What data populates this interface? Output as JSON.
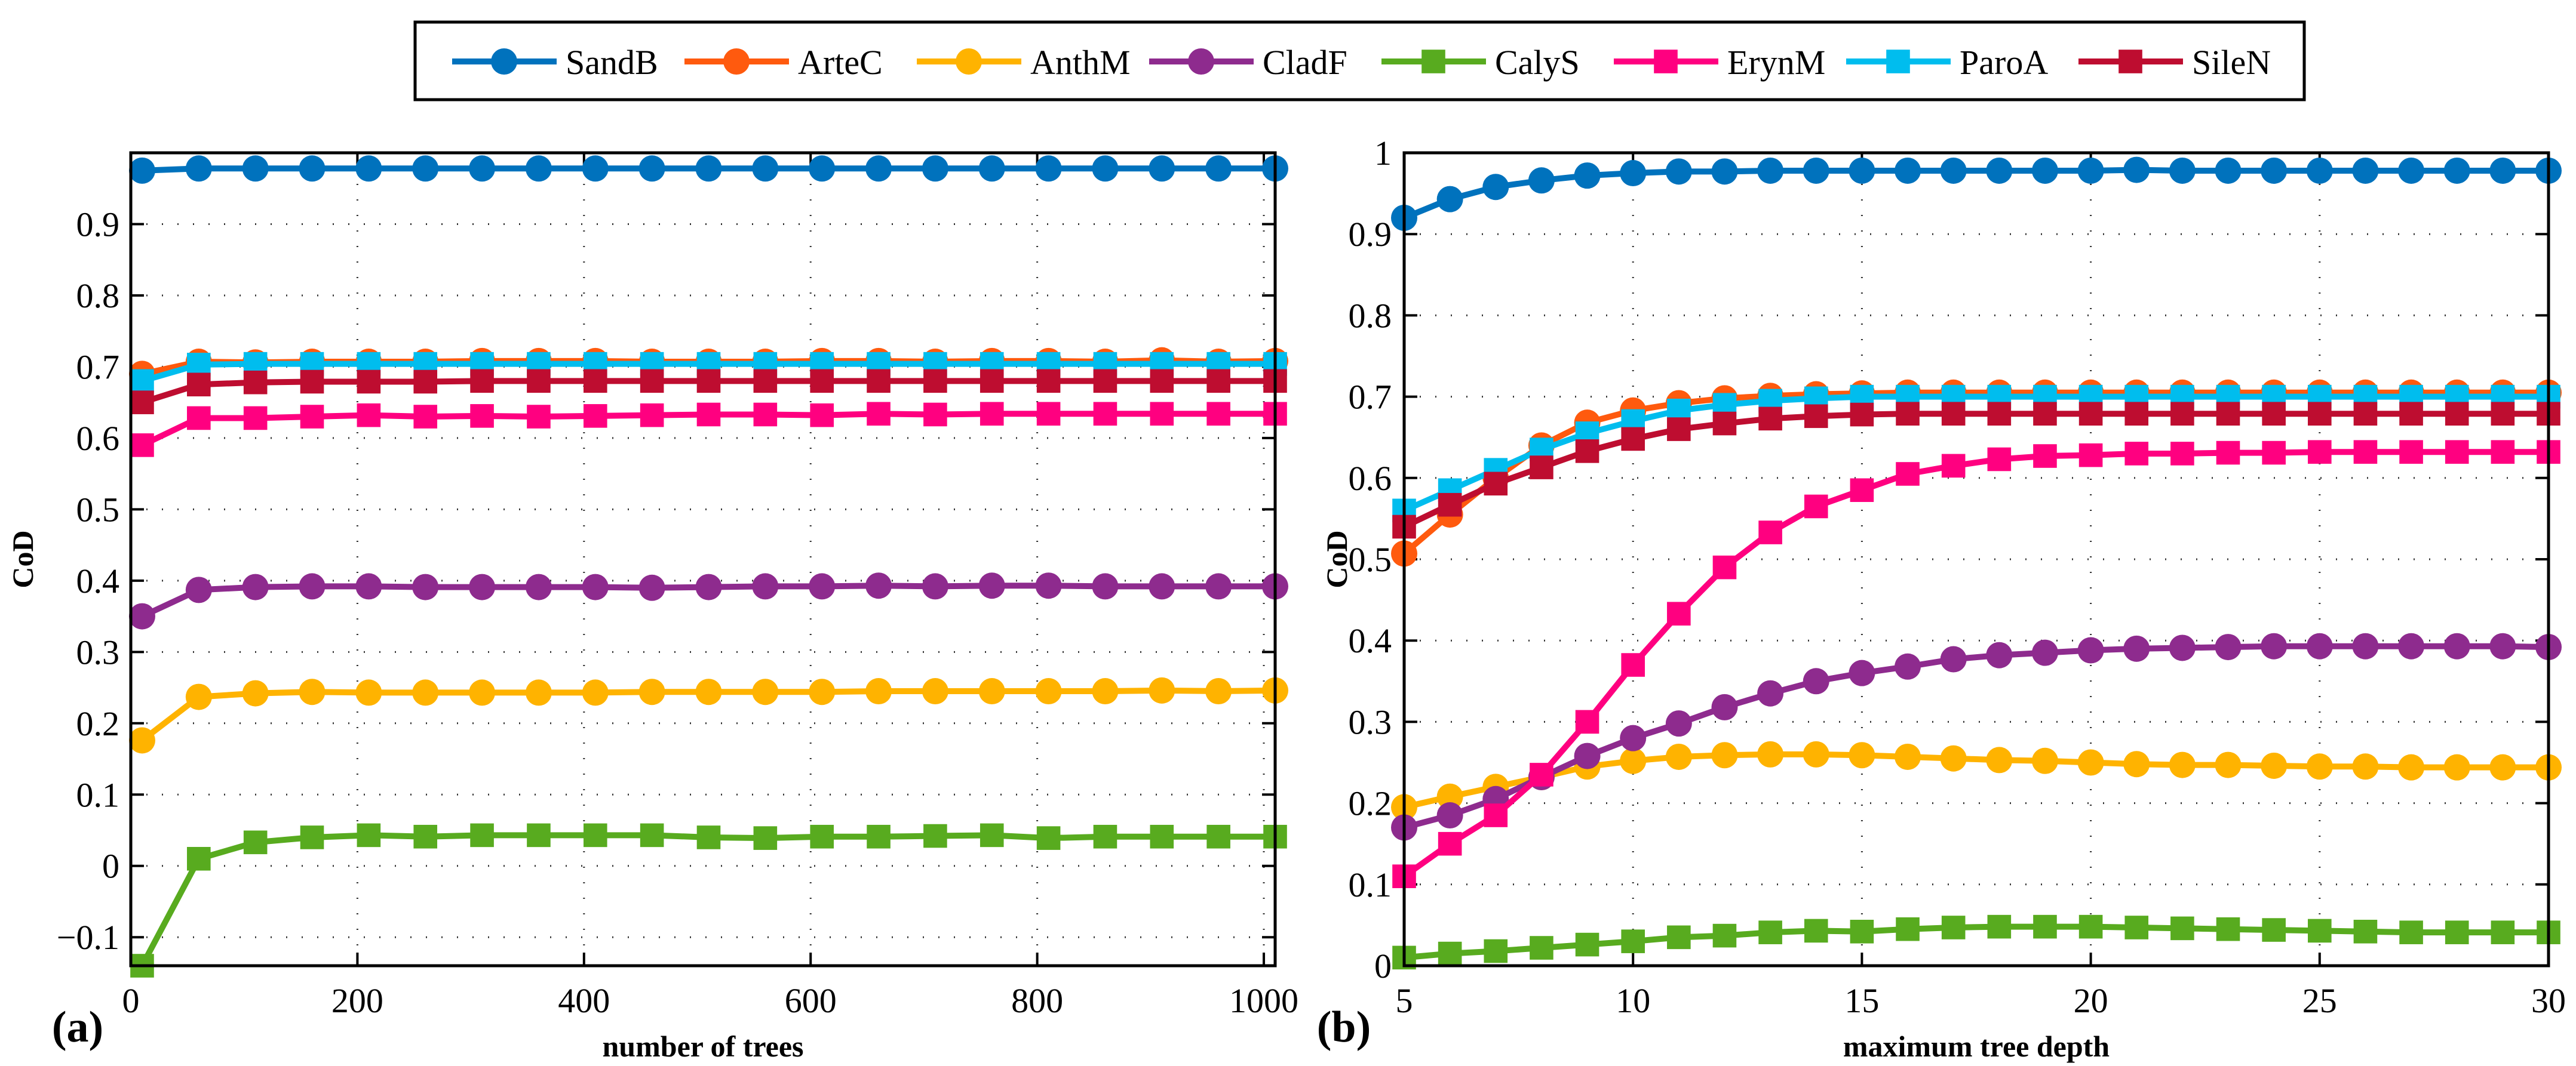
{
  "legend": {
    "placement": "top-center",
    "entries": [
      "SandB",
      "ArteC",
      "AnthM",
      "CladF",
      "CalyS",
      "ErynM",
      "ParoA",
      "SileN"
    ]
  },
  "series_style": [
    {
      "name": "SandB",
      "color": "#0072BD",
      "marker": "circle"
    },
    {
      "name": "ArteC",
      "color": "#FF5A0E",
      "marker": "circle"
    },
    {
      "name": "AnthM",
      "color": "#FFB300",
      "marker": "circle"
    },
    {
      "name": "CladF",
      "color": "#8E2B8E",
      "marker": "circle"
    },
    {
      "name": "CalyS",
      "color": "#58AB1F",
      "marker": "square"
    },
    {
      "name": "ErynM",
      "color": "#FF0080",
      "marker": "square"
    },
    {
      "name": "ParoA",
      "color": "#00BDEE",
      "marker": "square"
    },
    {
      "name": "SileN",
      "color": "#BE0D30",
      "marker": "square"
    }
  ],
  "chart_data": [
    {
      "type": "line",
      "panel_label": "(a)",
      "xlabel": "number of trees",
      "ylabel": "CoD",
      "xlim": [
        0,
        1010
      ],
      "ylim": [
        -0.14,
        1.0
      ],
      "xticks": [
        0,
        200,
        400,
        600,
        800,
        1000
      ],
      "xtick_labels": [
        "0",
        "200",
        "400",
        "600",
        "800",
        "1000"
      ],
      "yticks": [
        -0.1,
        0,
        0.1,
        0.2,
        0.3,
        0.4,
        0.5,
        0.6,
        0.7,
        0.8,
        0.9
      ],
      "ytick_labels": [
        "−0.1",
        "0",
        "0.1",
        "0.2",
        "0.3",
        "0.4",
        "0.5",
        "0.6",
        "0.7",
        "0.8",
        "0.9"
      ],
      "grid": true,
      "x": [
        10,
        60,
        110,
        160,
        210,
        260,
        310,
        360,
        410,
        460,
        510,
        560,
        610,
        660,
        710,
        760,
        810,
        860,
        910,
        960,
        1010
      ],
      "series": [
        {
          "name": "SandB",
          "values": [
            0.975,
            0.978,
            0.978,
            0.978,
            0.978,
            0.978,
            0.978,
            0.978,
            0.978,
            0.978,
            0.978,
            0.978,
            0.978,
            0.978,
            0.978,
            0.978,
            0.978,
            0.978,
            0.978,
            0.978,
            0.978
          ]
        },
        {
          "name": "ArteC",
          "values": [
            0.69,
            0.707,
            0.706,
            0.707,
            0.707,
            0.707,
            0.708,
            0.708,
            0.708,
            0.707,
            0.707,
            0.707,
            0.708,
            0.708,
            0.707,
            0.708,
            0.708,
            0.707,
            0.709,
            0.707,
            0.708
          ]
        },
        {
          "name": "AnthM",
          "values": [
            0.176,
            0.237,
            0.242,
            0.244,
            0.243,
            0.243,
            0.243,
            0.243,
            0.243,
            0.244,
            0.244,
            0.244,
            0.244,
            0.245,
            0.245,
            0.245,
            0.245,
            0.245,
            0.246,
            0.245,
            0.246
          ]
        },
        {
          "name": "CladF",
          "values": [
            0.35,
            0.387,
            0.391,
            0.392,
            0.392,
            0.391,
            0.391,
            0.391,
            0.391,
            0.39,
            0.391,
            0.392,
            0.392,
            0.393,
            0.392,
            0.393,
            0.393,
            0.392,
            0.392,
            0.392,
            0.392
          ]
        },
        {
          "name": "CalyS",
          "values": [
            -0.14,
            0.01,
            0.033,
            0.04,
            0.043,
            0.041,
            0.043,
            0.043,
            0.043,
            0.043,
            0.04,
            0.039,
            0.041,
            0.041,
            0.042,
            0.043,
            0.039,
            0.041,
            0.041,
            0.041,
            0.041
          ]
        },
        {
          "name": "ErynM",
          "values": [
            0.59,
            0.628,
            0.628,
            0.63,
            0.632,
            0.63,
            0.631,
            0.63,
            0.631,
            0.632,
            0.633,
            0.633,
            0.632,
            0.634,
            0.633,
            0.634,
            0.634,
            0.634,
            0.634,
            0.634,
            0.634
          ]
        },
        {
          "name": "ParoA",
          "values": [
            0.68,
            0.703,
            0.704,
            0.704,
            0.704,
            0.704,
            0.704,
            0.704,
            0.704,
            0.704,
            0.704,
            0.704,
            0.704,
            0.704,
            0.704,
            0.704,
            0.704,
            0.704,
            0.704,
            0.704,
            0.704
          ]
        },
        {
          "name": "SileN",
          "values": [
            0.65,
            0.675,
            0.678,
            0.679,
            0.679,
            0.679,
            0.68,
            0.68,
            0.68,
            0.68,
            0.68,
            0.68,
            0.68,
            0.68,
            0.68,
            0.68,
            0.68,
            0.68,
            0.68,
            0.68,
            0.68
          ]
        }
      ]
    },
    {
      "type": "line",
      "panel_label": "(b)",
      "xlabel": "maximum tree depth",
      "ylabel": "CoD",
      "xlim": [
        5,
        30
      ],
      "ylim": [
        0,
        1
      ],
      "xticks": [
        5,
        10,
        15,
        20,
        25,
        30
      ],
      "xtick_labels": [
        "5",
        "10",
        "15",
        "20",
        "25",
        "30"
      ],
      "yticks": [
        0,
        0.1,
        0.2,
        0.3,
        0.4,
        0.5,
        0.6,
        0.7,
        0.8,
        0.9,
        1
      ],
      "ytick_labels": [
        "0",
        "0.1",
        "0.2",
        "0.3",
        "0.4",
        "0.5",
        "0.6",
        "0.7",
        "0.8",
        "0.9",
        "1"
      ],
      "grid": true,
      "x": [
        5,
        6,
        7,
        8,
        9,
        10,
        11,
        12,
        13,
        14,
        15,
        16,
        17,
        18,
        19,
        20,
        21,
        22,
        23,
        24,
        25,
        26,
        27,
        28,
        29,
        30
      ],
      "series": [
        {
          "name": "SandB",
          "values": [
            0.92,
            0.943,
            0.958,
            0.966,
            0.972,
            0.975,
            0.977,
            0.977,
            0.978,
            0.978,
            0.978,
            0.978,
            0.978,
            0.978,
            0.978,
            0.978,
            0.979,
            0.978,
            0.978,
            0.978,
            0.978,
            0.978,
            0.978,
            0.978,
            0.978,
            0.978
          ]
        },
        {
          "name": "ArteC",
          "values": [
            0.507,
            0.555,
            0.6,
            0.64,
            0.668,
            0.683,
            0.692,
            0.698,
            0.701,
            0.703,
            0.704,
            0.705,
            0.705,
            0.705,
            0.705,
            0.705,
            0.705,
            0.705,
            0.705,
            0.705,
            0.705,
            0.705,
            0.705,
            0.705,
            0.705,
            0.705
          ]
        },
        {
          "name": "AnthM",
          "values": [
            0.195,
            0.208,
            0.22,
            0.232,
            0.245,
            0.252,
            0.257,
            0.259,
            0.26,
            0.26,
            0.259,
            0.257,
            0.255,
            0.253,
            0.252,
            0.25,
            0.248,
            0.247,
            0.247,
            0.246,
            0.245,
            0.245,
            0.244,
            0.244,
            0.244,
            0.244
          ]
        },
        {
          "name": "CladF",
          "values": [
            0.17,
            0.185,
            0.205,
            0.232,
            0.258,
            0.28,
            0.298,
            0.318,
            0.335,
            0.35,
            0.36,
            0.368,
            0.377,
            0.382,
            0.385,
            0.388,
            0.39,
            0.391,
            0.392,
            0.393,
            0.393,
            0.393,
            0.393,
            0.393,
            0.393,
            0.392
          ]
        },
        {
          "name": "CalyS",
          "values": [
            0.01,
            0.015,
            0.018,
            0.022,
            0.026,
            0.03,
            0.035,
            0.037,
            0.041,
            0.043,
            0.042,
            0.045,
            0.047,
            0.048,
            0.048,
            0.048,
            0.047,
            0.046,
            0.045,
            0.044,
            0.043,
            0.042,
            0.041,
            0.041,
            0.041,
            0.041
          ]
        },
        {
          "name": "ErynM",
          "values": [
            0.11,
            0.15,
            0.185,
            0.235,
            0.3,
            0.37,
            0.433,
            0.49,
            0.533,
            0.565,
            0.585,
            0.605,
            0.615,
            0.623,
            0.627,
            0.628,
            0.63,
            0.63,
            0.631,
            0.631,
            0.632,
            0.632,
            0.632,
            0.632,
            0.632,
            0.632
          ]
        },
        {
          "name": "ParoA",
          "values": [
            0.56,
            0.585,
            0.61,
            0.635,
            0.655,
            0.67,
            0.683,
            0.69,
            0.695,
            0.698,
            0.7,
            0.7,
            0.7,
            0.7,
            0.7,
            0.7,
            0.7,
            0.7,
            0.7,
            0.7,
            0.7,
            0.7,
            0.7,
            0.7,
            0.7,
            0.7
          ]
        },
        {
          "name": "SileN",
          "values": [
            0.54,
            0.567,
            0.593,
            0.613,
            0.633,
            0.648,
            0.66,
            0.667,
            0.673,
            0.676,
            0.678,
            0.679,
            0.679,
            0.679,
            0.679,
            0.679,
            0.679,
            0.679,
            0.679,
            0.679,
            0.679,
            0.679,
            0.679,
            0.679,
            0.679,
            0.679
          ]
        }
      ]
    }
  ]
}
